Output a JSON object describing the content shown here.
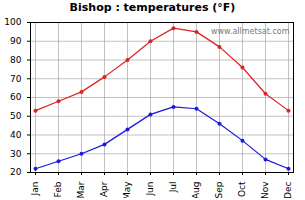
{
  "chart_data": {
    "type": "line",
    "title": "Bishop : temperatures (°F)",
    "categories": [
      "Jan",
      "Feb",
      "Mar",
      "Apr",
      "May",
      "Jun",
      "Jul",
      "Aug",
      "Sep",
      "Oct",
      "Nov",
      "Dec"
    ],
    "series": [
      {
        "color": "#dd2222",
        "marker": "dot",
        "values": [
          53,
          58,
          63,
          71,
          80,
          90,
          97,
          95,
          87,
          76,
          62,
          53
        ]
      },
      {
        "color": "#1a1adc",
        "marker": "dot",
        "values": [
          22,
          26,
          30,
          35,
          43,
          51,
          55,
          54,
          46,
          37,
          27,
          22
        ]
      }
    ],
    "ylim": [
      20,
      100
    ],
    "yticks": [
      20,
      30,
      40,
      50,
      60,
      70,
      80,
      90,
      100
    ],
    "grid": true,
    "annotations": [
      "www.allmetsat.com"
    ]
  }
}
